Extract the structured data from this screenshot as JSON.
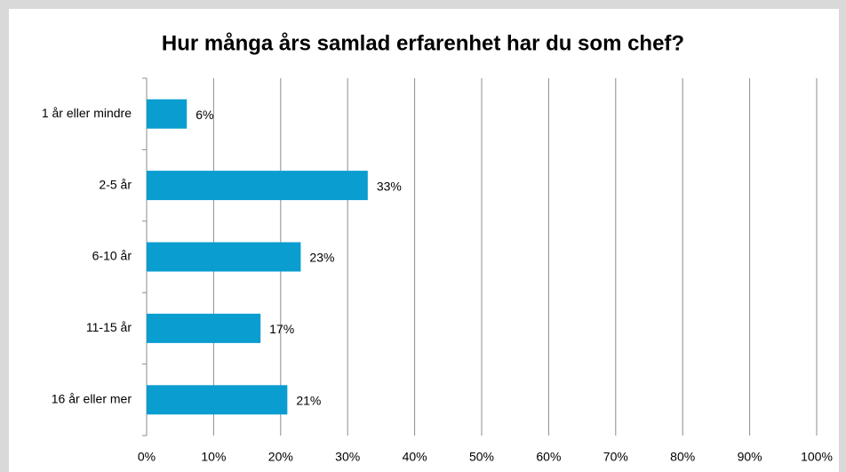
{
  "chart_data": {
    "type": "bar",
    "orientation": "horizontal",
    "title": "Hur många års samlad erfarenhet har du som chef?",
    "categories": [
      "1 år eller mindre",
      "2-5 år",
      "6-10 år",
      "11-15 år",
      "16 år eller mer"
    ],
    "values": [
      6,
      33,
      23,
      17,
      21
    ],
    "value_labels": [
      "6%",
      "33%",
      "23%",
      "17%",
      "21%"
    ],
    "color": "#0a9dd0",
    "xlim": [
      0,
      100
    ],
    "xticks": [
      {
        "value": 0,
        "label": "0%"
      },
      {
        "value": 10,
        "label": "10%"
      },
      {
        "value": 20,
        "label": "20%"
      },
      {
        "value": 30,
        "label": "30%"
      },
      {
        "value": 40,
        "label": "40%"
      },
      {
        "value": 50,
        "label": "50%"
      },
      {
        "value": 60,
        "label": "60%"
      },
      {
        "value": 70,
        "label": "70%"
      },
      {
        "value": 80,
        "label": "80%"
      },
      {
        "value": 90,
        "label": "90%"
      },
      {
        "value": 100,
        "label": "100%"
      }
    ],
    "grid": true
  }
}
